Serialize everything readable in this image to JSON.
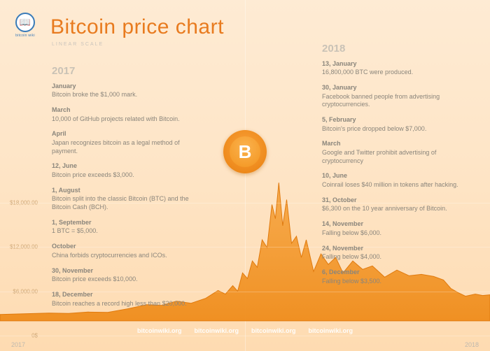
{
  "title": "Bitcoin price chart",
  "subtitle": "LINEAR SCALE",
  "logo_label": "bitcoin wiki",
  "logo_glyph": "📖",
  "coin_glyph": "B",
  "colors": {
    "title": "#e87b1f",
    "subtitle": "#c9c4bc",
    "year": "#c9c2b6",
    "event_text": "#8a857b",
    "axis_label": "#d0a877",
    "x_axis_label": "#bfb9af",
    "footer_link": "#ffffff",
    "chart_fill_top": "#f6a23a",
    "chart_fill_bottom": "#ef8c1b",
    "chart_stroke": "#e07a0e",
    "bg_tint": "#fcaf52",
    "gridline": "rgba(255,255,255,0.25)"
  },
  "typography": {
    "title_fontsize": 30,
    "title_fontweight": 300,
    "subtitle_fontsize": 7,
    "year_fontsize": 15,
    "event_fontsize": 9,
    "axis_fontsize": 8
  },
  "chart": {
    "type": "area",
    "ylim": [
      0,
      20000
    ],
    "y_ticks": [
      {
        "value": 0,
        "label": "0$",
        "y_pct": 95.6
      },
      {
        "value": 6000,
        "label": "$6,000.00",
        "y_pct": 83.0
      },
      {
        "value": 12000,
        "label": "$12,000.00",
        "y_pct": 70.4
      },
      {
        "value": 18000,
        "label": "$18,000.00",
        "y_pct": 57.8
      }
    ],
    "x_ticks": [
      "2017",
      "2018"
    ],
    "series": [
      {
        "x": 0.0,
        "y": 900
      },
      {
        "x": 0.05,
        "y": 1000
      },
      {
        "x": 0.1,
        "y": 1100
      },
      {
        "x": 0.14,
        "y": 1050
      },
      {
        "x": 0.18,
        "y": 1250
      },
      {
        "x": 0.22,
        "y": 1200
      },
      {
        "x": 0.26,
        "y": 1700
      },
      {
        "x": 0.3,
        "y": 2300
      },
      {
        "x": 0.33,
        "y": 2200
      },
      {
        "x": 0.36,
        "y": 2800
      },
      {
        "x": 0.39,
        "y": 2500
      },
      {
        "x": 0.42,
        "y": 3200
      },
      {
        "x": 0.445,
        "y": 4300
      },
      {
        "x": 0.46,
        "y": 3800
      },
      {
        "x": 0.475,
        "y": 5000
      },
      {
        "x": 0.485,
        "y": 4200
      },
      {
        "x": 0.495,
        "y": 6800
      },
      {
        "x": 0.505,
        "y": 6000
      },
      {
        "x": 0.515,
        "y": 8500
      },
      {
        "x": 0.525,
        "y": 7600
      },
      {
        "x": 0.535,
        "y": 11500
      },
      {
        "x": 0.545,
        "y": 10400
      },
      {
        "x": 0.555,
        "y": 16500
      },
      {
        "x": 0.562,
        "y": 14500
      },
      {
        "x": 0.569,
        "y": 19600
      },
      {
        "x": 0.577,
        "y": 13500
      },
      {
        "x": 0.585,
        "y": 17200
      },
      {
        "x": 0.595,
        "y": 11000
      },
      {
        "x": 0.605,
        "y": 12000
      },
      {
        "x": 0.615,
        "y": 9000
      },
      {
        "x": 0.625,
        "y": 11500
      },
      {
        "x": 0.64,
        "y": 7000
      },
      {
        "x": 0.655,
        "y": 9500
      },
      {
        "x": 0.67,
        "y": 8000
      },
      {
        "x": 0.685,
        "y": 9000
      },
      {
        "x": 0.7,
        "y": 6800
      },
      {
        "x": 0.72,
        "y": 8500
      },
      {
        "x": 0.74,
        "y": 7300
      },
      {
        "x": 0.76,
        "y": 7800
      },
      {
        "x": 0.785,
        "y": 6200
      },
      {
        "x": 0.81,
        "y": 7200
      },
      {
        "x": 0.835,
        "y": 6400
      },
      {
        "x": 0.86,
        "y": 6600
      },
      {
        "x": 0.885,
        "y": 6300
      },
      {
        "x": 0.905,
        "y": 5800
      },
      {
        "x": 0.92,
        "y": 4600
      },
      {
        "x": 0.935,
        "y": 4000
      },
      {
        "x": 0.95,
        "y": 3500
      },
      {
        "x": 0.97,
        "y": 3800
      },
      {
        "x": 0.985,
        "y": 3600
      },
      {
        "x": 1.0,
        "y": 3700
      }
    ]
  },
  "columns": {
    "left": {
      "year": "2017",
      "events": [
        {
          "date": "January",
          "text": "Bitcoin broke the $1,000 mark."
        },
        {
          "date": "March",
          "text": "10,000 of GitHub projects related with Bitcoin."
        },
        {
          "date": "April",
          "text": "Japan recognizes bitcoin as a legal method of payment."
        },
        {
          "date": "12, June",
          "text": "Bitcoin price exceeds $3,000."
        },
        {
          "date": "1, August",
          "text": "Bitcoin split into the classic Bitcoin (BTC) and the Bitcoin Cash (BCH)."
        },
        {
          "date": "1, September",
          "text": "1 BTC = $5,000."
        },
        {
          "date": "October",
          "text": "China forbids cryptocurrencies and ICOs."
        },
        {
          "date": "30, November",
          "text": "Bitcoin price exceeds $10,000."
        },
        {
          "date": "18, December",
          "text": "Bitcoin reaches a record high less than $20,000."
        }
      ]
    },
    "right": {
      "year": "2018",
      "events": [
        {
          "date": "13, January",
          "text": "16,800,000 BTC were produced."
        },
        {
          "date": "30, January",
          "text": "Facebook banned people from advertising cryptocurrencies."
        },
        {
          "date": "5, February",
          "text": "Bitcoin's price dropped below $7,000."
        },
        {
          "date": "March",
          "text": "Google and Twitter prohibit advertising of cryptocurrency"
        },
        {
          "date": "10, June",
          "text": "Coinrail loses $40 million in tokens after hacking."
        },
        {
          "date": "31, October",
          "text": "$6,300 on the 10 year anniversary of Bitcoin."
        },
        {
          "date": "14, November",
          "text": "Falling below $6,000."
        },
        {
          "date": "24, November",
          "text": "Falling below $4,000."
        },
        {
          "date": "6, December",
          "text": "Falling below $3,500."
        }
      ]
    }
  },
  "footer_links": [
    "bitcoinwiki.org",
    "bitcoinwiki.org",
    "bitcoinwiki.org",
    "bitcoinwiki.org"
  ]
}
